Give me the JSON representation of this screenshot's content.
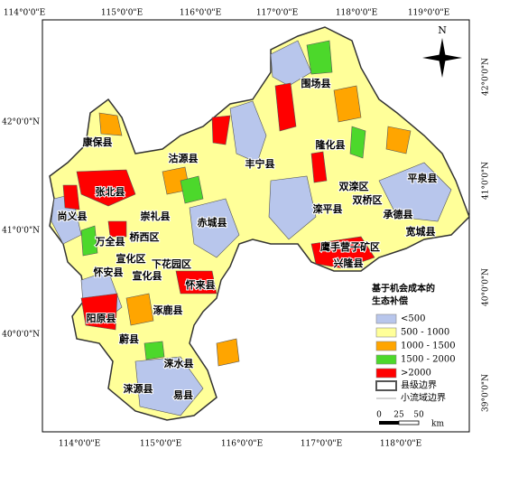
{
  "top_labels": [
    "114°0'0\"E",
    "115°0'0\"E",
    "116°0'0\"E",
    "117°0'0\"E",
    "118°0'0\"E",
    "119°0'0\"E"
  ],
  "bottom_labels": [
    "114°0'0\"E",
    "115°0'0\"E",
    "116°0'0\"E",
    "117°0'0\"E",
    "118°0'0\"E"
  ],
  "left_labels": [
    "42°0'0\"N",
    "41°0'0\"N",
    "40°0'0\"N"
  ],
  "right_labels": [
    "42°0'0\"N",
    "41°0'0\"N",
    "40°0'0\"N",
    "39°0'0\"N"
  ],
  "north": "N",
  "counties": [
    "围场县",
    "康保县",
    "隆化县",
    "沽源县",
    "丰宁县",
    "平泉县",
    "张北县",
    "双滦区",
    "双桥区",
    "尚义县",
    "崇礼县",
    "赤城县",
    "滦平县",
    "承德县",
    "万全县",
    "桥西区",
    "宽城县",
    "宣化区",
    "鹰手营子矿区",
    "下花园区",
    "兴隆县",
    "怀安县",
    "宣化县",
    "怀来县",
    "阳原县",
    "涿鹿县",
    "蔚县",
    "涞水县",
    "涞源县",
    "易县"
  ],
  "legend": {
    "title": [
      "基于机会成本的",
      "生态补偿"
    ],
    "items": [
      {
        "label": "<500",
        "color": "#b8c6ec"
      },
      {
        "label": "500 - 1000",
        "color": "#ffff99"
      },
      {
        "label": "1000 - 1500",
        "color": "#ffa500"
      },
      {
        "label": "1500 - 2000",
        "color": "#4cd82b"
      },
      {
        "label": ">2000",
        "color": "#ff0000"
      }
    ],
    "boundaries": [
      "县级边界",
      "小流域边界"
    ]
  },
  "scale": {
    "ticks": [
      "0",
      "25",
      "50"
    ],
    "unit": "km"
  }
}
